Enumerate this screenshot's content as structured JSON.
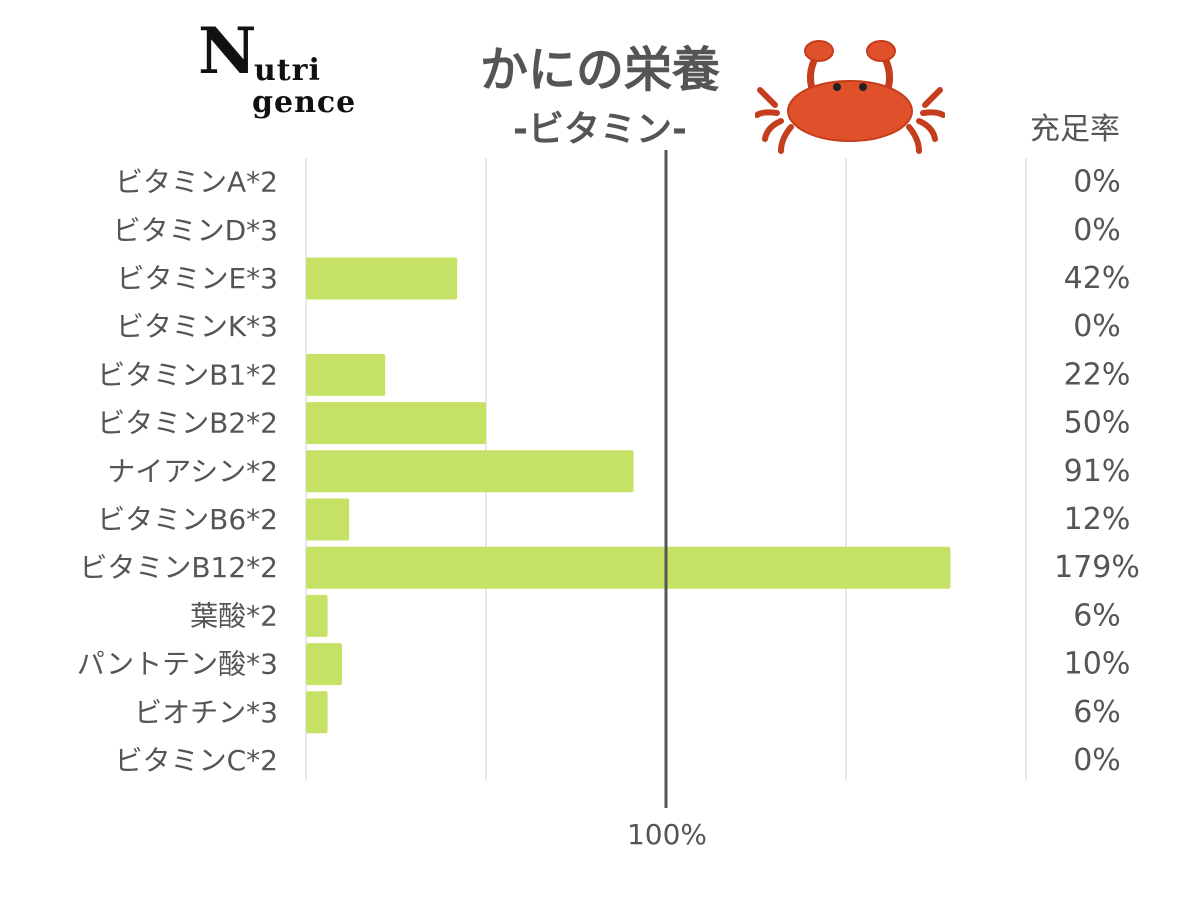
{
  "logo": {
    "letter": "N",
    "line1": "utri",
    "line2": "gence"
  },
  "title": "かにの栄養",
  "subtitle": "-ビタミン-",
  "rate_header": "充足率",
  "bottom_label": "100%",
  "colors": {
    "bar": "#c6e266",
    "grid": "#e0e0e0",
    "refline": "#555555",
    "crab": "#e0502a"
  },
  "chart_data": {
    "type": "bar",
    "orientation": "horizontal",
    "title": "かにの栄養",
    "subtitle": "-ビタミン-",
    "categories": [
      "ビタミンA*2",
      "ビタミンD*3",
      "ビタミンE*3",
      "ビタミンK*3",
      "ビタミンB1*2",
      "ビタミンB2*2",
      "ナイアシン*2",
      "ビタミンB6*2",
      "ビタミンB12*2",
      "葉酸*2",
      "パントテン酸*3",
      "ビオチン*3",
      "ビタミンC*2"
    ],
    "values": [
      0,
      0,
      42,
      0,
      22,
      50,
      91,
      12,
      179,
      6,
      10,
      6,
      0
    ],
    "value_labels": [
      "0%",
      "0%",
      "42%",
      "0%",
      "22%",
      "50%",
      "91%",
      "12%",
      "179%",
      "6%",
      "10%",
      "6%",
      "0%"
    ],
    "unit": "%",
    "xlim": [
      0,
      200
    ],
    "grid": true,
    "reference_line": 100
  }
}
